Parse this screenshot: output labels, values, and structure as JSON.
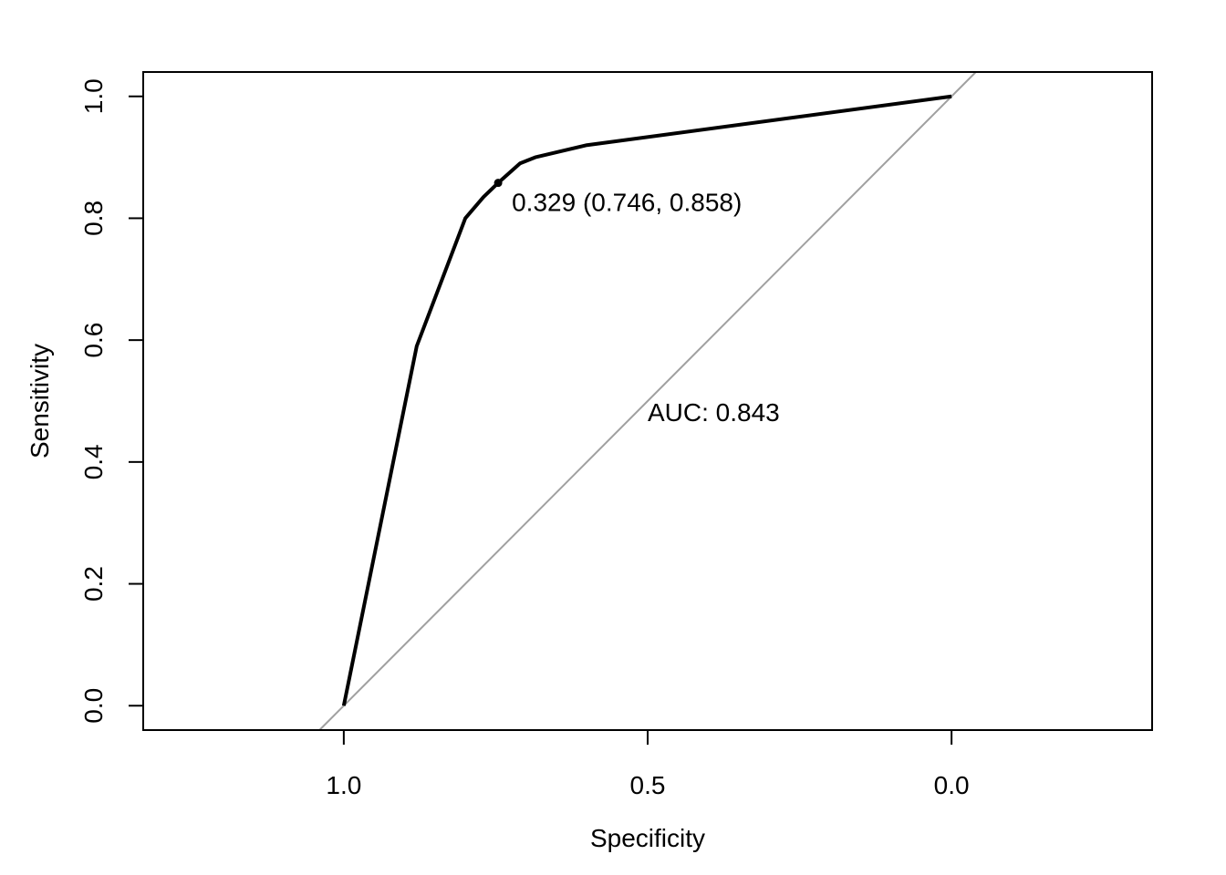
{
  "chart_data": {
    "type": "line",
    "title": "",
    "xlabel": "Specificity",
    "ylabel": "Sensitivity",
    "x_reversed": true,
    "xlim": [
      1.33,
      -0.33
    ],
    "ylim": [
      -0.04,
      1.04
    ],
    "x_ticks": [
      1.0,
      0.5,
      0.0
    ],
    "x_tick_labels": [
      "1.0",
      "0.5",
      "0.0"
    ],
    "y_ticks": [
      0.0,
      0.2,
      0.4,
      0.6,
      0.8,
      1.0
    ],
    "y_tick_labels": [
      "0.0",
      "0.2",
      "0.4",
      "0.6",
      "0.8",
      "1.0"
    ],
    "grid": false,
    "series": [
      {
        "color": "#000000",
        "x": [
          1.0,
          0.88,
          0.8,
          0.77,
          0.746,
          0.71,
          0.685,
          0.6,
          0.0
        ],
        "y": [
          0.0,
          0.59,
          0.8,
          0.835,
          0.858,
          0.89,
          0.9,
          0.92,
          1.0
        ]
      }
    ],
    "reference_line": {
      "color": "#a0a0a0",
      "slope": 1,
      "description": "diagonal y = 1 - x"
    },
    "best_threshold": {
      "threshold": 0.329,
      "specificity": 0.746,
      "sensitivity": 0.858,
      "label": "0.329 (0.746, 0.858)"
    },
    "auc": {
      "value": 0.843,
      "label": "AUC: 0.843"
    }
  }
}
